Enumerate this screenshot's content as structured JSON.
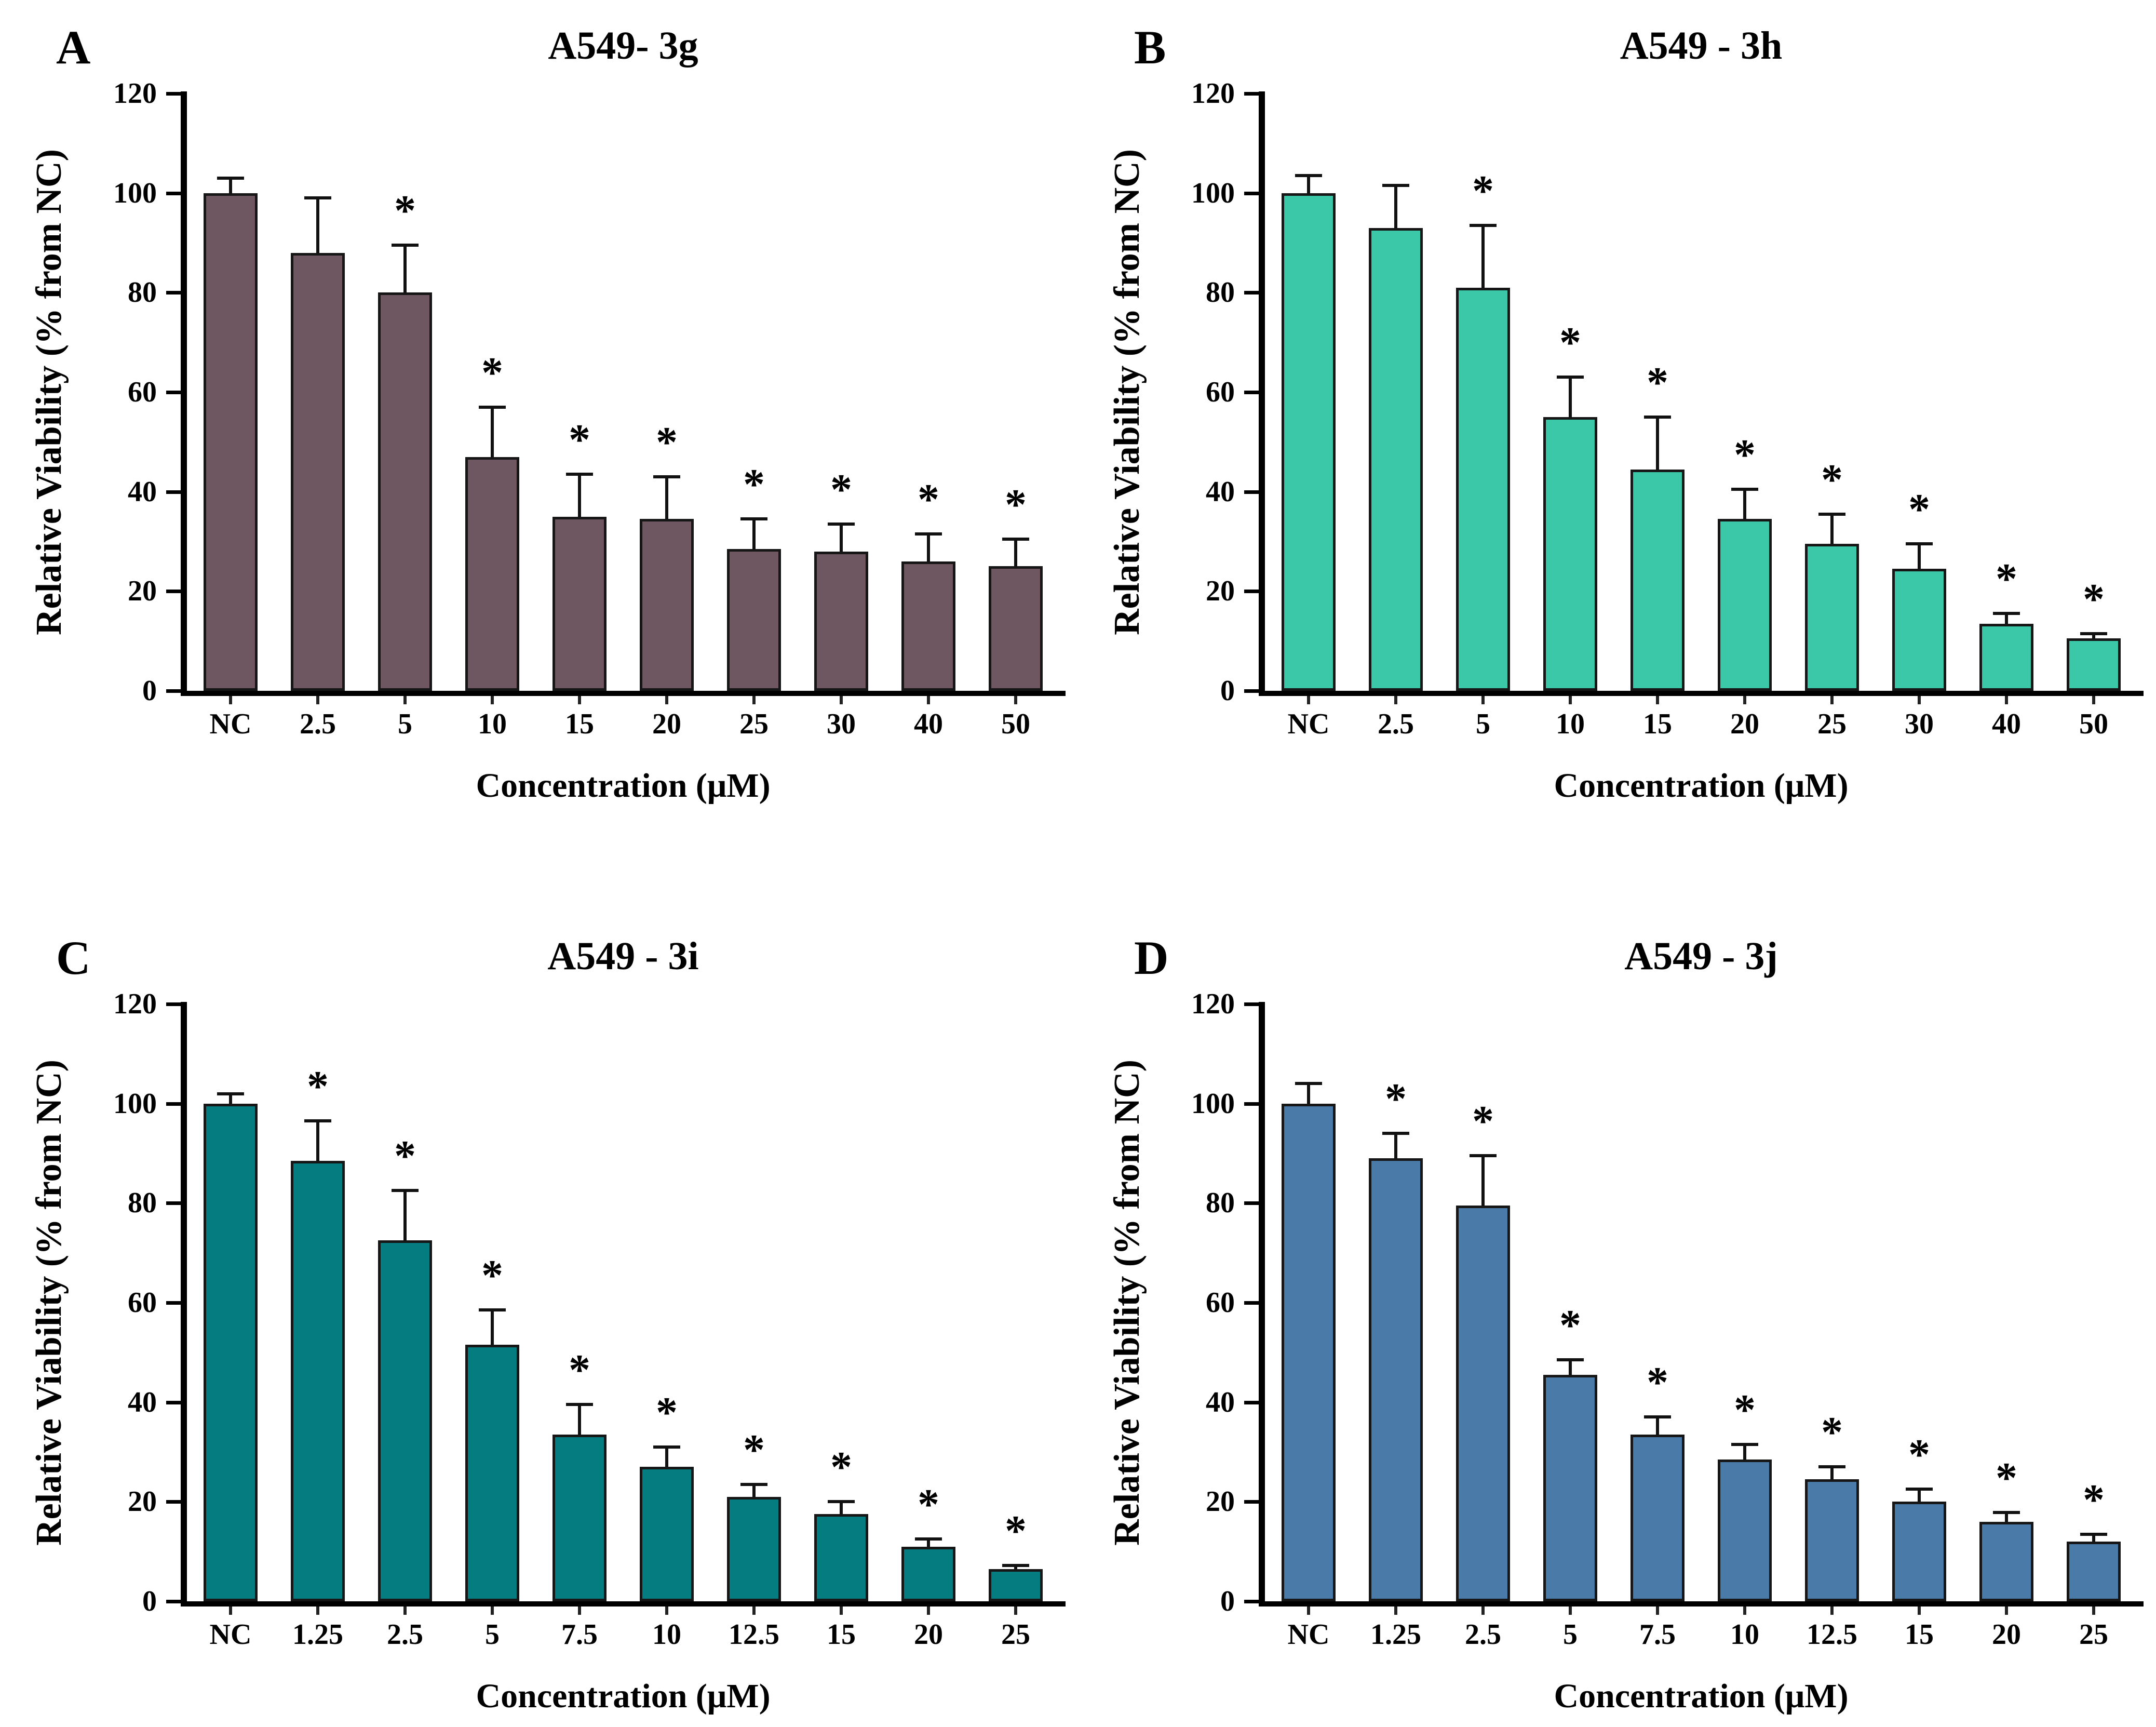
{
  "figure": {
    "background": "#ffffff",
    "axis_color": "#000000",
    "bar_outline": "#161616",
    "error_bar_color": "#111111",
    "significance_marker": "*",
    "x_axis_label": "Concentration (μM)",
    "y_axis": {
      "label": "Relative Viability (% from NC)",
      "min": 0,
      "max": 120,
      "tick_step": 20,
      "ticks": [
        0,
        20,
        40,
        60,
        80,
        100,
        120
      ]
    },
    "panel_letters": [
      "A",
      "B",
      "C",
      "D"
    ]
  },
  "chart_data": [
    {
      "type": "bar",
      "panel": "A",
      "title": "A549- 3g",
      "bar_color": "#6F5761",
      "xlabel": "Concentration (μM)",
      "ylabel": "Relative Viability (% from NC)",
      "ylim": [
        0,
        120
      ],
      "categories": [
        "NC",
        "2.5",
        "5",
        "10",
        "15",
        "20",
        "25",
        "30",
        "40",
        "50"
      ],
      "values": [
        100,
        88,
        80,
        47,
        35,
        34.5,
        28.5,
        28,
        26,
        25
      ],
      "errors": [
        3,
        11,
        9.5,
        10,
        8.5,
        8.5,
        6,
        5.5,
        5.5,
        5.5
      ],
      "significant": [
        false,
        false,
        true,
        true,
        true,
        true,
        true,
        true,
        true,
        true
      ]
    },
    {
      "type": "bar",
      "panel": "B",
      "title": "A549 - 3h",
      "bar_color": "#3AC8A8",
      "xlabel": "Concentration (μM)",
      "ylabel": "Relative Viability (% from NC)",
      "ylim": [
        0,
        120
      ],
      "categories": [
        "NC",
        "2.5",
        "5",
        "10",
        "15",
        "20",
        "25",
        "30",
        "40",
        "50"
      ],
      "values": [
        100,
        93,
        81,
        55,
        44.5,
        34.5,
        29.5,
        24.5,
        13.5,
        10.5
      ],
      "errors": [
        3.5,
        8.5,
        12.5,
        8,
        10.5,
        6,
        6,
        5,
        2,
        1
      ],
      "significant": [
        false,
        false,
        true,
        true,
        true,
        true,
        true,
        true,
        true,
        true
      ]
    },
    {
      "type": "bar",
      "panel": "C",
      "title": "A549 - 3i",
      "bar_color": "#057C80",
      "xlabel": "Concentration (μM)",
      "ylabel": "Relative Viability (% from NC)",
      "ylim": [
        0,
        120
      ],
      "categories": [
        "NC",
        "1.25",
        "2.5",
        "5",
        "7.5",
        "10",
        "12.5",
        "15",
        "20",
        "25"
      ],
      "values": [
        100,
        88.5,
        72.5,
        51.5,
        33.5,
        27,
        21,
        17.5,
        11,
        6.5
      ],
      "errors": [
        2,
        8,
        10,
        7,
        6,
        4,
        2.5,
        2.5,
        1.5,
        0.7
      ],
      "significant": [
        false,
        true,
        true,
        true,
        true,
        true,
        true,
        true,
        true,
        true
      ]
    },
    {
      "type": "bar",
      "panel": "D",
      "title": "A549 - 3j",
      "bar_color": "#4A7BA8",
      "xlabel": "Concentration (μM)",
      "ylabel": "Relative Viability (% from NC)",
      "ylim": [
        0,
        120
      ],
      "categories": [
        "NC",
        "1.25",
        "2.5",
        "5",
        "7.5",
        "10",
        "12.5",
        "15",
        "20",
        "25"
      ],
      "values": [
        100,
        89,
        79.5,
        45.5,
        33.5,
        28.5,
        24.5,
        20,
        16,
        12
      ],
      "errors": [
        4,
        5,
        10,
        3,
        3.5,
        3,
        2.5,
        2.5,
        1.8,
        1.5
      ],
      "significant": [
        false,
        true,
        true,
        true,
        true,
        true,
        true,
        true,
        true,
        true
      ]
    }
  ]
}
